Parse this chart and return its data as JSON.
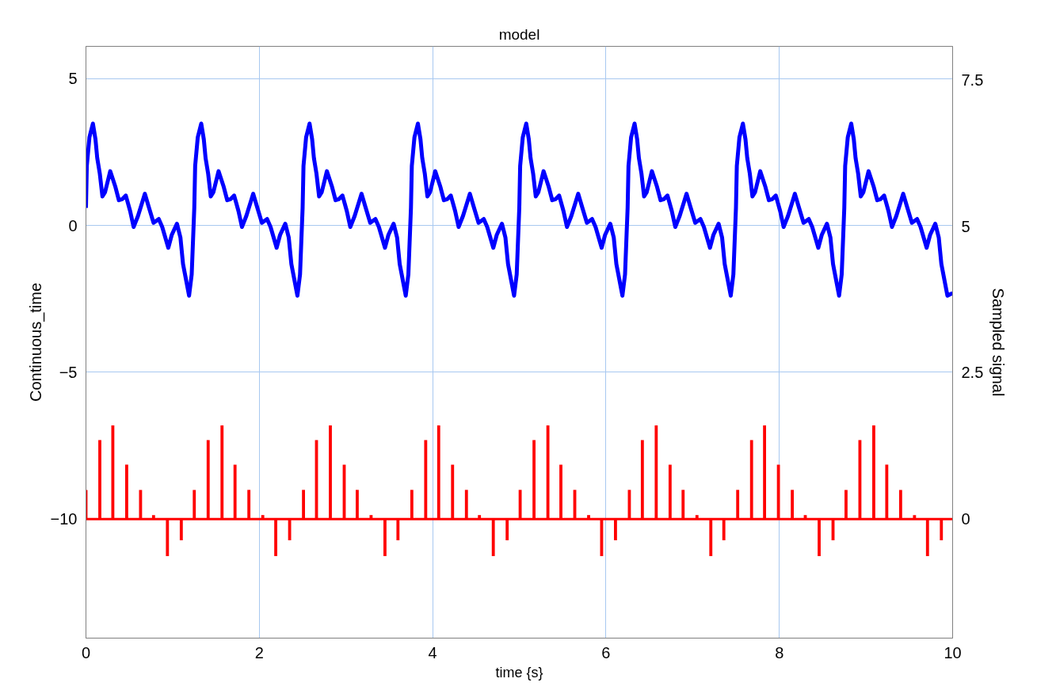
{
  "chart_data": {
    "type": "line",
    "title": "model",
    "xlabel": "time {s}",
    "ylabel": "Continuous_time",
    "y2label": "Sampled signal",
    "xlim": [
      0,
      10
    ],
    "xticks": [
      0,
      2,
      4,
      6,
      8,
      10
    ],
    "ylim": [
      -14.05,
      6.1
    ],
    "yticks": [
      -10,
      -5,
      0,
      5
    ],
    "y2lim": [
      -2.03,
      8.07
    ],
    "y2ticks": [
      0,
      2.5,
      5,
      7.5
    ],
    "grid": true,
    "line_style": "solid",
    "marker": "none",
    "ref_lines": [
      {
        "axis": "y2",
        "value": 0,
        "color": "#ff0000"
      }
    ],
    "series": [
      {
        "color": "#0000ff",
        "x": [
          0,
          0.01,
          0.04,
          0.08,
          0.11,
          0.13,
          0.16,
          0.19,
          0.22,
          0.28,
          0.34,
          0.38,
          0.42,
          0.46,
          0.51,
          0.55,
          0.6,
          0.68,
          0.72,
          0.78,
          0.84,
          0.88,
          0.95,
          0.99,
          1.05,
          1.09,
          1.12,
          1.19,
          1.22,
          1.25,
          1.26,
          1.29,
          1.33,
          1.36,
          1.38,
          1.41,
          1.44,
          1.47,
          1.53,
          1.59,
          1.63,
          1.67,
          1.71,
          1.76,
          1.8,
          1.85,
          1.93,
          1.97,
          2.03,
          2.09,
          2.13,
          2.2,
          2.24,
          2.3,
          2.34,
          2.37,
          2.44,
          2.47,
          2.5,
          2.51,
          2.54,
          2.58,
          2.61,
          2.63,
          2.66,
          2.69,
          2.72,
          2.78,
          2.84,
          2.88,
          2.92,
          2.96,
          3.01,
          3.05,
          3.1,
          3.18,
          3.22,
          3.28,
          3.34,
          3.38,
          3.45,
          3.49,
          3.55,
          3.59,
          3.62,
          3.69,
          3.72,
          3.75,
          3.76,
          3.79,
          3.83,
          3.86,
          3.88,
          3.91,
          3.94,
          3.97,
          4.03,
          4.09,
          4.13,
          4.17,
          4.21,
          4.26,
          4.3,
          4.35,
          4.43,
          4.47,
          4.53,
          4.59,
          4.63,
          4.7,
          4.74,
          4.8,
          4.84,
          4.87,
          4.94,
          4.97,
          5,
          5.01,
          5.04,
          5.08,
          5.11,
          5.13,
          5.16,
          5.19,
          5.22,
          5.28,
          5.34,
          5.38,
          5.42,
          5.46,
          5.51,
          5.55,
          5.6,
          5.68,
          5.72,
          5.78,
          5.84,
          5.88,
          5.95,
          5.99,
          6.05,
          6.09,
          6.12,
          6.19,
          6.22,
          6.25,
          6.26,
          6.29,
          6.33,
          6.36,
          6.38,
          6.41,
          6.44,
          6.47,
          6.53,
          6.59,
          6.63,
          6.67,
          6.71,
          6.76,
          6.8,
          6.85,
          6.93,
          6.97,
          7.03,
          7.09,
          7.13,
          7.2,
          7.24,
          7.3,
          7.34,
          7.37,
          7.44,
          7.47,
          7.5,
          7.51,
          7.54,
          7.58,
          7.61,
          7.63,
          7.66,
          7.69,
          7.72,
          7.78,
          7.84,
          7.88,
          7.92,
          7.96,
          8.01,
          8.05,
          8.1,
          8.18,
          8.22,
          8.28,
          8.34,
          8.38,
          8.45,
          8.49,
          8.55,
          8.59,
          8.62,
          8.69,
          8.72,
          8.75,
          8.76,
          8.79,
          8.83,
          8.86,
          8.88,
          8.91,
          8.94,
          8.97,
          9.03,
          9.09,
          9.13,
          9.17,
          9.21,
          9.26,
          9.3,
          9.35,
          9.43,
          9.47,
          9.53,
          9.59,
          9.63,
          9.7,
          9.74,
          9.8,
          9.84,
          9.87,
          9.94,
          10
        ],
        "values": [
          0.6,
          2.03,
          3.0,
          3.47,
          2.93,
          2.3,
          1.76,
          0.99,
          1.13,
          1.85,
          1.31,
          0.86,
          0.9,
          1.02,
          0.49,
          -0.05,
          0.32,
          1.08,
          0.68,
          0.09,
          0.22,
          -0.05,
          -0.76,
          -0.32,
          0.06,
          -0.41,
          -1.31,
          -2.39,
          -1.67,
          0.6,
          2.03,
          3.0,
          3.47,
          2.93,
          2.3,
          1.76,
          0.99,
          1.13,
          1.85,
          1.31,
          0.86,
          0.9,
          1.02,
          0.49,
          -0.05,
          0.32,
          1.08,
          0.68,
          0.09,
          0.22,
          -0.05,
          -0.76,
          -0.32,
          0.06,
          -0.41,
          -1.31,
          -2.39,
          -1.67,
          0.6,
          2.03,
          3.0,
          3.47,
          2.93,
          2.3,
          1.76,
          0.99,
          1.13,
          1.85,
          1.31,
          0.86,
          0.9,
          1.02,
          0.49,
          -0.05,
          0.32,
          1.08,
          0.68,
          0.09,
          0.22,
          -0.05,
          -0.76,
          -0.32,
          0.06,
          -0.41,
          -1.31,
          -2.39,
          -1.67,
          0.6,
          2.03,
          3.0,
          3.47,
          2.93,
          2.3,
          1.76,
          0.99,
          1.13,
          1.85,
          1.31,
          0.86,
          0.9,
          1.02,
          0.49,
          -0.05,
          0.32,
          1.08,
          0.68,
          0.09,
          0.22,
          -0.05,
          -0.76,
          -0.32,
          0.06,
          -0.41,
          -1.31,
          -2.39,
          -1.67,
          0.6,
          2.03,
          3.0,
          3.47,
          2.93,
          2.3,
          1.76,
          0.99,
          1.13,
          1.85,
          1.31,
          0.86,
          0.9,
          1.02,
          0.49,
          -0.05,
          0.32,
          1.08,
          0.68,
          0.09,
          0.22,
          -0.05,
          -0.76,
          -0.32,
          0.06,
          -0.41,
          -1.31,
          -2.39,
          -1.67,
          0.6,
          2.03,
          3.0,
          3.47,
          2.93,
          2.3,
          1.76,
          0.99,
          1.13,
          1.85,
          1.31,
          0.86,
          0.9,
          1.02,
          0.49,
          -0.05,
          0.32,
          1.08,
          0.68,
          0.09,
          0.22,
          -0.05,
          -0.76,
          -0.32,
          0.06,
          -0.41,
          -1.31,
          -2.39,
          -1.67,
          0.6,
          2.03,
          3.0,
          3.47,
          2.93,
          2.3,
          1.76,
          0.99,
          1.13,
          1.85,
          1.31,
          0.86,
          0.9,
          1.02,
          0.49,
          -0.05,
          0.32,
          1.08,
          0.68,
          0.09,
          0.22,
          -0.05,
          -0.76,
          -0.32,
          0.06,
          -0.41,
          -1.31,
          -2.39,
          -1.67,
          0.6,
          2.03,
          3.0,
          3.47,
          2.93,
          2.3,
          1.76,
          0.99,
          1.13,
          1.85,
          1.31,
          0.86,
          0.9,
          1.02,
          0.49,
          -0.05,
          0.32,
          1.08,
          0.68,
          0.09,
          0.22,
          -0.05,
          -0.76,
          -0.32,
          0.06,
          -0.41,
          -1.31,
          -2.39,
          -2.3
        ]
      },
      {
        "type": "bar",
        "axis": "y2",
        "color": "#ff0000",
        "x": [
          0,
          0.16,
          0.31,
          0.47,
          0.63,
          0.78,
          0.94,
          1.1,
          1.25,
          1.41,
          1.57,
          1.72,
          1.88,
          2.04,
          2.19,
          2.35,
          2.51,
          2.66,
          2.82,
          2.98,
          3.13,
          3.29,
          3.45,
          3.6,
          3.76,
          3.92,
          4.07,
          4.23,
          4.39,
          4.54,
          4.7,
          4.86,
          5.01,
          5.17,
          5.33,
          5.48,
          5.64,
          5.8,
          5.95,
          6.11,
          6.27,
          6.42,
          6.58,
          6.74,
          6.89,
          7.05,
          7.21,
          7.36,
          7.52,
          7.68,
          7.83,
          7.99,
          8.15,
          8.3,
          8.46,
          8.62,
          8.77,
          8.93,
          9.09,
          9.24,
          9.4,
          9.56,
          9.71,
          9.87
        ],
        "values": [
          0.5,
          1.35,
          1.6,
          0.93,
          0.5,
          0.07,
          -0.63,
          -0.36,
          0.5,
          1.35,
          1.6,
          0.93,
          0.5,
          0.07,
          -0.63,
          -0.36,
          0.5,
          1.35,
          1.6,
          0.93,
          0.5,
          0.07,
          -0.63,
          -0.36,
          0.5,
          1.35,
          1.6,
          0.93,
          0.5,
          0.07,
          -0.63,
          -0.36,
          0.5,
          1.35,
          1.6,
          0.93,
          0.5,
          0.07,
          -0.63,
          -0.36,
          0.5,
          1.35,
          1.6,
          0.93,
          0.5,
          0.07,
          -0.63,
          -0.36,
          0.5,
          1.35,
          1.6,
          0.93,
          0.5,
          0.07,
          -0.63,
          -0.36,
          0.5,
          1.35,
          1.6,
          0.93,
          0.5,
          0.07,
          -0.63,
          -0.36
        ]
      }
    ]
  }
}
